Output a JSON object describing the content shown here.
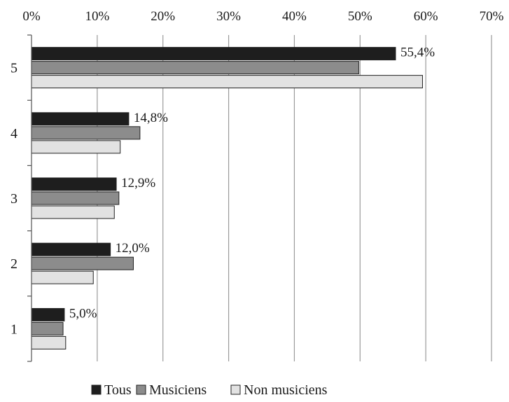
{
  "chart_data": {
    "type": "bar",
    "orientation": "horizontal",
    "categories": [
      "5",
      "4",
      "3",
      "2",
      "1"
    ],
    "series": [
      {
        "name": "Tous",
        "color": "#1e1e1e",
        "values": [
          55.4,
          14.8,
          12.9,
          12.0,
          5.0
        ]
      },
      {
        "name": "Musiciens",
        "color": "#8c8c8c",
        "values": [
          49.8,
          16.5,
          13.3,
          15.5,
          4.8
        ]
      },
      {
        "name": "Non musiciens",
        "color": "#e2e2e2",
        "values": [
          59.5,
          13.5,
          12.6,
          9.4,
          5.2
        ]
      }
    ],
    "data_labels": [
      "55,4%",
      "14,8%",
      "12,9%",
      "12,0%",
      "5,0%"
    ],
    "xlim": [
      0,
      70
    ],
    "xticks": [
      0,
      10,
      20,
      30,
      40,
      50,
      60,
      70
    ],
    "xtick_labels": [
      "0%",
      "10%",
      "20%",
      "30%",
      "40%",
      "50%",
      "60%",
      "70%"
    ],
    "grid": true,
    "legend_position": "bottom"
  }
}
